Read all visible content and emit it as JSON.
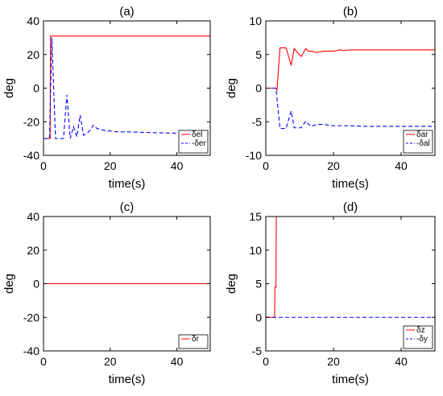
{
  "chart_data": [
    {
      "type": "line",
      "title": "(a)",
      "xlabel": "time(s)",
      "ylabel": "deg",
      "xlim": [
        0,
        50
      ],
      "ylim": [
        -40,
        40
      ],
      "xticks": [
        0,
        20,
        40
      ],
      "yticks": [
        40,
        20,
        0,
        -20,
        -40
      ],
      "legend_position": "bottom-right",
      "series": [
        {
          "name": "δel",
          "color": "#ff0000",
          "dash": "solid",
          "x": [
            0,
            2.0,
            2.1,
            50
          ],
          "y": [
            -30,
            -30,
            31,
            31
          ]
        },
        {
          "name": "-δer",
          "color": "#0000ff",
          "dash": "dashed",
          "x": [
            0,
            1.8,
            2.5,
            3.6,
            4,
            6,
            7,
            8,
            9,
            10,
            11,
            12,
            13,
            14,
            15,
            16,
            17,
            18,
            19,
            20,
            22,
            25,
            30,
            35,
            40,
            45,
            50
          ],
          "y": [
            -30,
            -30,
            30,
            -30,
            -30,
            -30,
            -4,
            -30,
            -23,
            -29,
            -16,
            -28,
            -27,
            -25,
            -22,
            -24,
            -24.5,
            -25,
            -25.5,
            -25.5,
            -26,
            -26,
            -26.3,
            -26.6,
            -26.8,
            -27,
            -27
          ]
        }
      ]
    },
    {
      "type": "line",
      "title": "(b)",
      "xlabel": "time(s)",
      "ylabel": "deg",
      "xlim": [
        0,
        50
      ],
      "ylim": [
        -10,
        10
      ],
      "xticks": [
        0,
        20,
        40
      ],
      "yticks": [
        10,
        5,
        0,
        -5,
        -10
      ],
      "legend_position": "bottom-right",
      "series": [
        {
          "name": "δar",
          "color": "#ff0000",
          "dash": "solid",
          "x": [
            0,
            3.0,
            3.3,
            4.2,
            5.8,
            6.0,
            7.5,
            8.4,
            9.5,
            10.5,
            11.8,
            12.5,
            13.5,
            15,
            17,
            20,
            22,
            23,
            25,
            30,
            40,
            50
          ],
          "y": [
            0,
            0,
            -0.3,
            6.0,
            6.0,
            6.0,
            3.4,
            5.9,
            5.2,
            4.7,
            5.9,
            5.5,
            5.5,
            5.3,
            5.5,
            5.5,
            5.7,
            5.6,
            5.7,
            5.7,
            5.7,
            5.7
          ]
        },
        {
          "name": "-δal",
          "color": "#0000ff",
          "dash": "dashed",
          "x": [
            0,
            3.0,
            4.2,
            6.0,
            7.5,
            8.4,
            9.5,
            10.5,
            11.8,
            12.5,
            13.5,
            15,
            17,
            20,
            25,
            30,
            40,
            50
          ],
          "y": [
            0,
            0,
            -6.0,
            -6.0,
            -3.4,
            -5.9,
            -5.9,
            -5.9,
            -4.9,
            -5.3,
            -5.7,
            -5.4,
            -5.4,
            -5.6,
            -5.6,
            -5.7,
            -5.7,
            -5.7
          ]
        }
      ]
    },
    {
      "type": "line",
      "title": "(c)",
      "xlabel": "time(s)",
      "ylabel": "deg",
      "xlim": [
        0,
        50
      ],
      "ylim": [
        -40,
        40
      ],
      "xticks": [
        0,
        20,
        40
      ],
      "yticks": [
        40,
        20,
        0,
        -20,
        -40
      ],
      "legend_position": "bottom-right",
      "series": [
        {
          "name": "δr",
          "color": "#ff0000",
          "dash": "solid",
          "x": [
            0,
            50
          ],
          "y": [
            0,
            0
          ]
        }
      ]
    },
    {
      "type": "line",
      "title": "(d)",
      "xlabel": "time(s)",
      "ylabel": "deg",
      "xlim": [
        0,
        50
      ],
      "ylim": [
        -5,
        15
      ],
      "xticks": [
        0,
        20,
        40
      ],
      "yticks": [
        15,
        10,
        5,
        0,
        -5
      ],
      "legend_position": "bottom-right",
      "series": [
        {
          "name": "δz",
          "color": "#ff0000",
          "dash": "solid",
          "x": [
            0,
            2.6,
            2.7,
            3.0,
            3.1,
            50
          ],
          "y": [
            0,
            0,
            4.5,
            4.5,
            15,
            15
          ]
        },
        {
          "name": "-δy",
          "color": "#0000ff",
          "dash": "dashed",
          "x": [
            0,
            50
          ],
          "y": [
            0,
            0
          ]
        }
      ]
    }
  ]
}
